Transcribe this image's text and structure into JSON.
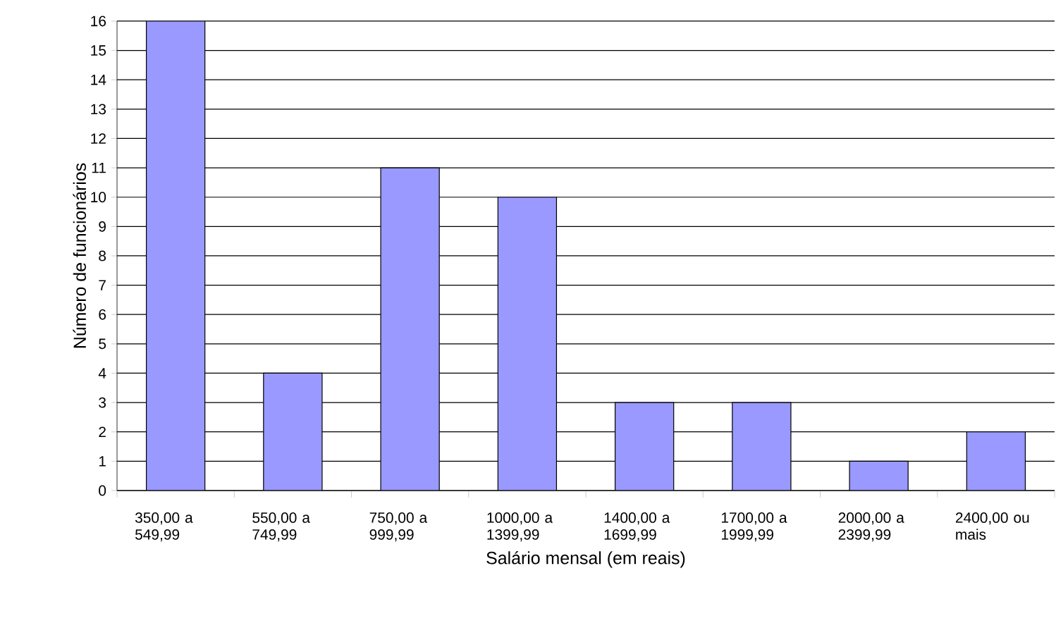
{
  "chart_data": {
    "type": "bar",
    "xlabel": "Salário mensal (em reais)",
    "ylabel": "Número de funcionários",
    "categories": [
      "350,00 a 549,99",
      "550,00 a 749,99",
      "750,00 a 999,99",
      "1000,00 a 1399,99",
      "1400,00 a 1699,99",
      "1700,00 a 1999,99",
      "2000,00 a 2399,99",
      "2400,00 ou mais"
    ],
    "values": [
      16,
      4,
      11,
      10,
      3,
      3,
      1,
      2
    ],
    "color": "#9999ff",
    "ylim": [
      0,
      16
    ],
    "yticks": [
      0,
      1,
      2,
      3,
      4,
      5,
      6,
      7,
      8,
      9,
      10,
      11,
      12,
      13,
      14,
      15,
      16
    ],
    "grid": "y"
  }
}
